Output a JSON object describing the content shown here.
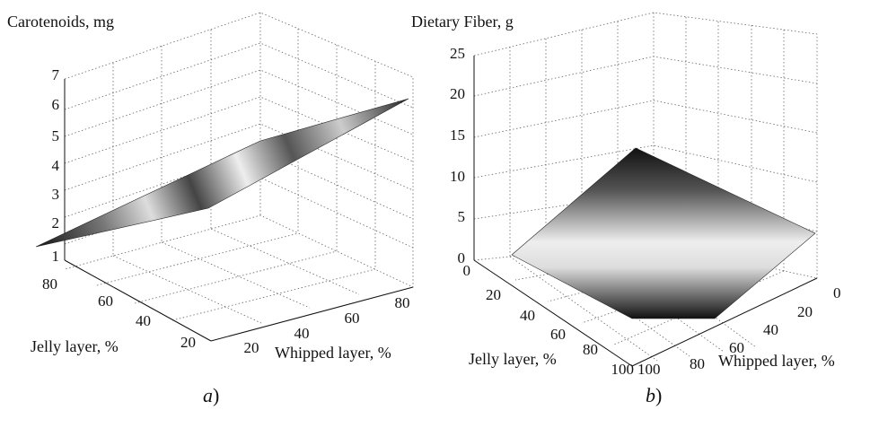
{
  "chart_data": [
    {
      "type": "surface3d",
      "panel_label": "a",
      "zlabel": "Carotenoids, mg",
      "ylabel": "Jelly layer, %",
      "xlabel": "Whipped layer, %",
      "z_ticks": [
        "1",
        "2",
        "3",
        "4",
        "5",
        "6",
        "7"
      ],
      "y_ticks": [
        "80",
        "60",
        "40",
        "20"
      ],
      "x_ticks": [
        "20",
        "40",
        "60",
        "80"
      ],
      "zlim": [
        1,
        7
      ],
      "surface": {
        "corners": [
          {
            "whipped": 10,
            "jelly": 90,
            "value": 1.2
          },
          {
            "whipped": 90,
            "jelly": 90,
            "value": 6.6
          },
          {
            "whipped": 10,
            "jelly": 10,
            "value": 2.5
          },
          {
            "whipped": 90,
            "jelly": 10,
            "value": 5.3
          }
        ]
      },
      "grid": true,
      "colormap": "gray"
    },
    {
      "type": "surface3d",
      "panel_label": "b",
      "zlabel": "Dietary Fiber, g",
      "ylabel": "Jelly layer, %",
      "xlabel": "Whipped layer, %",
      "z_ticks": [
        "0",
        "5",
        "10",
        "15",
        "20",
        "25"
      ],
      "y_ticks": [
        "0",
        "20",
        "40",
        "60",
        "80",
        "100"
      ],
      "x_ticks": [
        "0",
        "20",
        "40",
        "60",
        "80",
        "100"
      ],
      "zlim": [
        0,
        25
      ],
      "surface": {
        "corners": [
          {
            "whipped": 0,
            "jelly": 0,
            "value": 1
          },
          {
            "whipped": 100,
            "jelly": 0,
            "value": 14
          },
          {
            "whipped": 0,
            "jelly": 100,
            "value": 1
          },
          {
            "whipped": 100,
            "jelly": 100,
            "value": 1
          }
        ]
      },
      "grid": true,
      "colormap": "gray"
    }
  ]
}
